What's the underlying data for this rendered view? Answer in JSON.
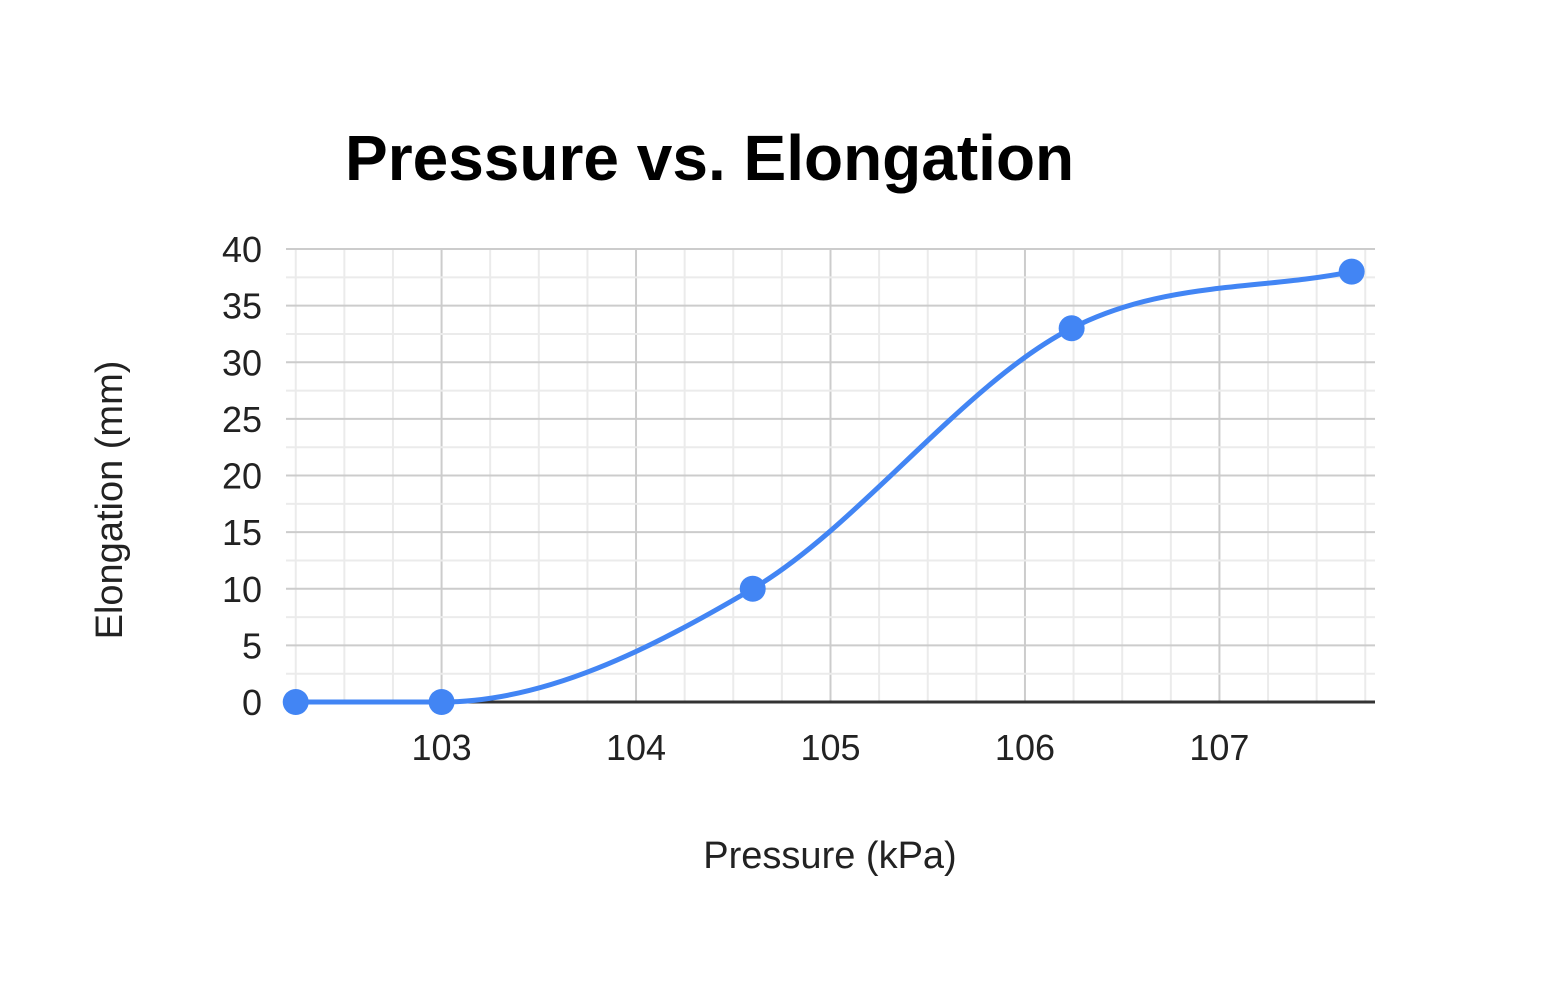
{
  "chart_data": {
    "type": "line",
    "title": "Pressure vs. Elongation",
    "xlabel": "Pressure (kPa)",
    "ylabel": "Elongation (mm)",
    "xlim": [
      102.2,
      107.8
    ],
    "ylim": [
      0,
      40
    ],
    "x_ticks": [
      103,
      104,
      105,
      106,
      107
    ],
    "y_ticks": [
      0,
      5,
      10,
      15,
      20,
      25,
      30,
      35,
      40
    ],
    "x_minor_step": 0.25,
    "y_minor_step": 2.5,
    "grid": true,
    "legend": "none",
    "smooth": true,
    "series": [
      {
        "color": "#4285f4",
        "x": [
          102.25,
          103.0,
          104.6,
          106.24,
          107.68
        ],
        "y": [
          0,
          0,
          10,
          33,
          38
        ]
      }
    ]
  }
}
